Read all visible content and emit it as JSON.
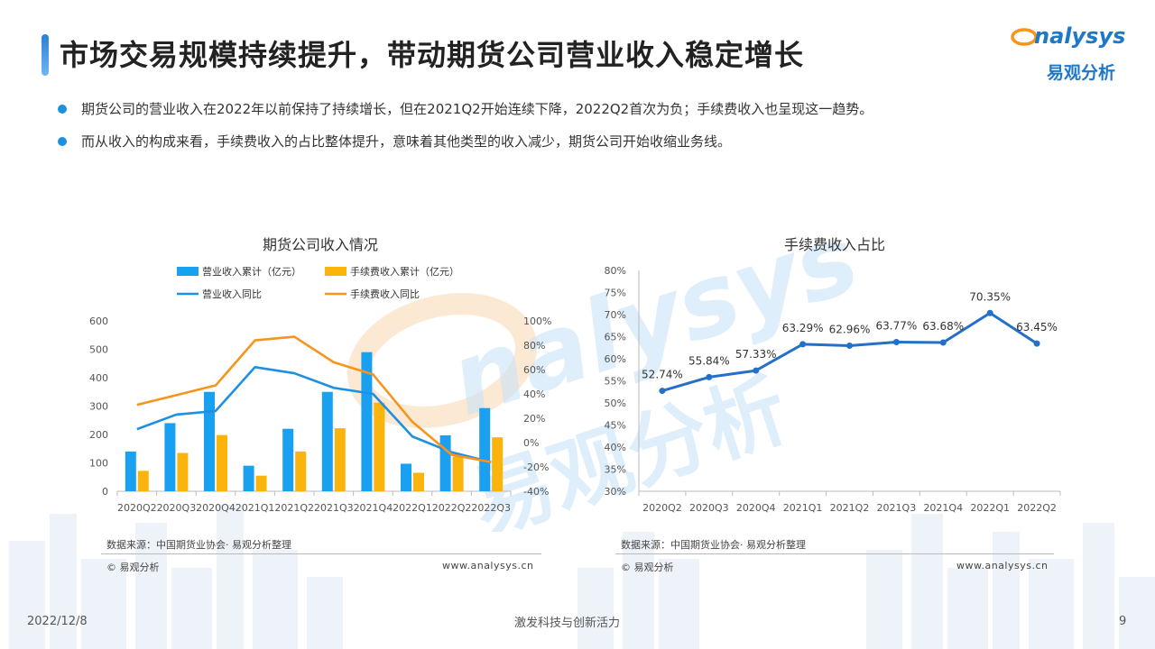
{
  "header": {
    "title": "市场交易规模持续提升，带动期货公司营业收入稳定增长",
    "logo_en": "nalysys",
    "logo_cn": "易观分析"
  },
  "bullets": [
    "期货公司的营业收入在2022年以前保持了持续增长，但在2021Q2开始连续下降，2022Q2首次为负；手续费收入也呈现这一趋势。",
    "而从收入的构成来看，手续费收入的占比整体提升，意味着其他类型的收入减少，期货公司开始收缩业务线。"
  ],
  "watermark": {
    "en": "nalysys",
    "cn": "易观分析"
  },
  "colors": {
    "blue": "#1aa0f0",
    "yellow": "#fbb40c",
    "line_blue": "#1e90e0",
    "orange": "#f7941d",
    "ratio_line": "#2470c8"
  },
  "chart_data": [
    {
      "type": "bar",
      "title": "期货公司收入情况",
      "categories": [
        "2020Q2",
        "2020Q3",
        "2020Q4",
        "2021Q1",
        "2021Q2",
        "2021Q3",
        "2021Q4",
        "2022Q1",
        "2022Q2",
        "2022Q3"
      ],
      "series": [
        {
          "name": "营业收入累计（亿元）",
          "kind": "bar",
          "axis": "left",
          "values": [
            140,
            240,
            350,
            90,
            220,
            350,
            490,
            97,
            197,
            293
          ]
        },
        {
          "name": "手续费收入累计（亿元）",
          "kind": "bar",
          "axis": "left",
          "values": [
            72,
            135,
            198,
            55,
            140,
            222,
            312,
            65,
            122,
            190
          ]
        },
        {
          "name": "营业收入同比",
          "kind": "line",
          "axis": "right",
          "values": [
            11,
            23,
            26,
            62,
            57,
            45,
            40,
            5,
            -8,
            -16
          ]
        },
        {
          "name": "手续费收入同比",
          "kind": "line",
          "axis": "right",
          "values": [
            31,
            39,
            47,
            84,
            87,
            66,
            56,
            17,
            -10,
            -16
          ]
        }
      ],
      "y_left": {
        "ylim": [
          0,
          600
        ],
        "ticks": [
          "0",
          "100",
          "200",
          "300",
          "400",
          "500",
          "600"
        ]
      },
      "y_right": {
        "ylim": [
          -40,
          100
        ],
        "ticks": [
          "-40%",
          "-20%",
          "0%",
          "20%",
          "40%",
          "60%",
          "80%",
          "100%"
        ]
      },
      "legend": "top",
      "source": "数据来源：中国期货业协会· 易观分析整理",
      "copyright": "© 易观分析",
      "site": "www.analysys.cn"
    },
    {
      "type": "line",
      "title": "手续费收入占比",
      "categories": [
        "2020Q2",
        "2020Q3",
        "2020Q4",
        "2021Q1",
        "2021Q2",
        "2021Q3",
        "2021Q4",
        "2022Q1",
        "2022Q2"
      ],
      "values": [
        52.74,
        55.84,
        57.33,
        63.29,
        62.96,
        63.77,
        63.68,
        70.35,
        63.45
      ],
      "labels": [
        "52.74%",
        "55.84%",
        "57.33%",
        "63.29%",
        "62.96%",
        "63.77%",
        "63.68%",
        "70.35%",
        "63.45%"
      ],
      "ylim": [
        30,
        80
      ],
      "ticks": [
        "30%",
        "35%",
        "40%",
        "45%",
        "50%",
        "55%",
        "60%",
        "65%",
        "70%",
        "75%",
        "80%"
      ],
      "source": "数据来源：中国期货业协会· 易观分析整理",
      "copyright": "© 易观分析",
      "site": "www.analysys.cn"
    }
  ],
  "footer": {
    "date": "2022/12/8",
    "slogan": "激发科技与创新活力",
    "page": "9"
  }
}
